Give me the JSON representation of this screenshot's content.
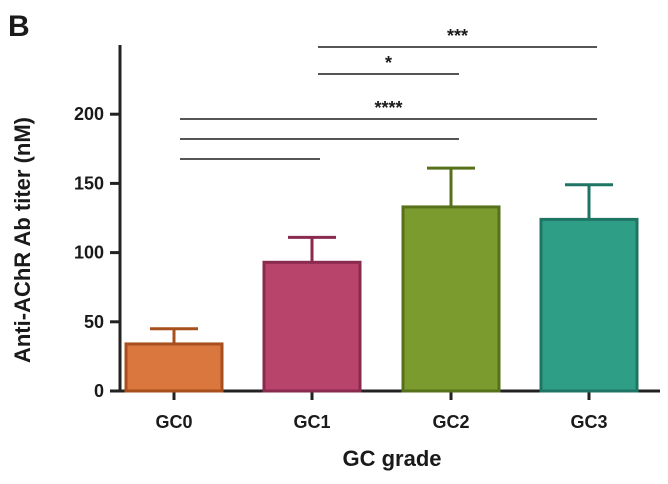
{
  "panel_label": "B",
  "chart_data": {
    "type": "bar",
    "title": "",
    "xlabel": "GC grade",
    "ylabel": "Anti-AChR Ab titer (nM)",
    "categories": [
      "GC0",
      "GC1",
      "GC2",
      "GC3"
    ],
    "values": [
      34,
      93,
      133,
      124
    ],
    "errors": [
      11,
      18,
      28,
      25
    ],
    "ylim": [
      0,
      250
    ],
    "yticks": [
      0,
      50,
      100,
      150,
      200
    ],
    "ytick_labels": [
      "0",
      "50",
      "100",
      "150",
      "200"
    ],
    "colors": {
      "fill": [
        "#d9773e",
        "#b8446c",
        "#7c9b2e",
        "#2f9e86"
      ],
      "border": [
        "#a84f1e",
        "#8a2a4e",
        "#56711a",
        "#1e7563"
      ]
    },
    "significance": [
      {
        "from": "GC1",
        "to": "GC3",
        "label": "***"
      },
      {
        "from": "GC1",
        "to": "GC2",
        "label": "*"
      },
      {
        "from": "GC0",
        "to": "GC3",
        "label": "****"
      },
      {
        "from": "GC0",
        "to": "GC2",
        "label": ""
      },
      {
        "from": "GC0",
        "to": "GC1",
        "label": ""
      }
    ],
    "grid": false,
    "legend": "none"
  }
}
